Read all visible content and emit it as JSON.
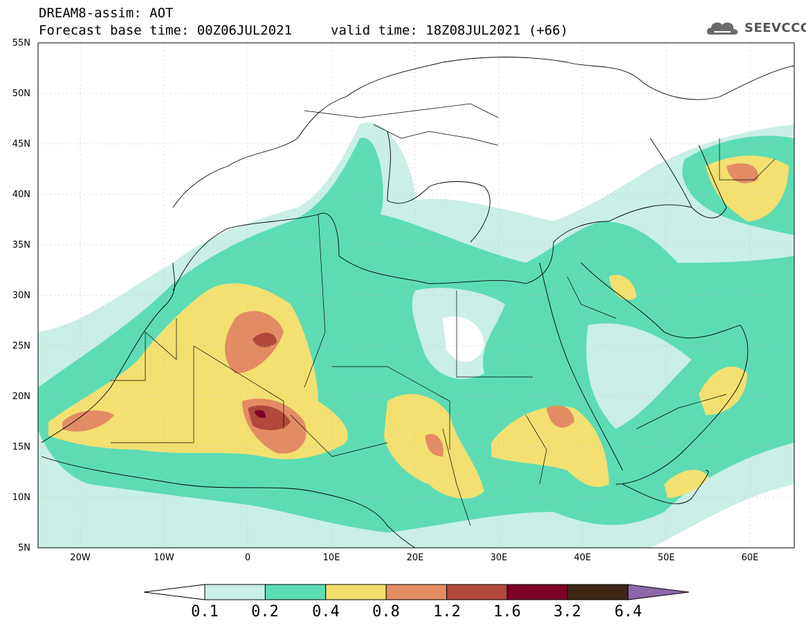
{
  "header": {
    "title": "DREAM8-assim: AOT",
    "base_time": "Forecast base time: 00Z06JUL2021",
    "valid_time": "valid time: 18Z08JUL2021 (+66)",
    "logo_text": "SEEVCCC"
  },
  "map": {
    "lat_labels": [
      "55N",
      "50N",
      "45N",
      "40N",
      "35N",
      "30N",
      "25N",
      "20N",
      "15N",
      "10N",
      "5N"
    ],
    "lon_labels": [
      "20W",
      "10W",
      "0",
      "10E",
      "20E",
      "30E",
      "40E",
      "50E",
      "60E"
    ],
    "lon_range": [
      -25,
      65
    ],
    "lat_range": [
      5,
      55
    ]
  },
  "colorbar": {
    "labels": [
      "0.1",
      "0.2",
      "0.4",
      "0.8",
      "1.2",
      "1.6",
      "3.2",
      "6.4"
    ],
    "colors": [
      "#c9efe6",
      "#5ddcb4",
      "#f3e071",
      "#e38c64",
      "#b0493c",
      "#7d0025",
      "#3f2617",
      "#8c67a9"
    ]
  }
}
